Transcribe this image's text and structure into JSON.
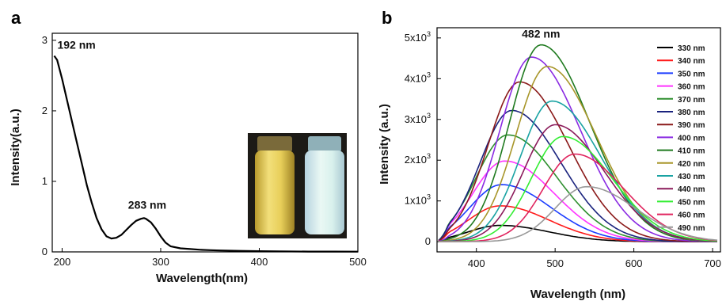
{
  "chart_data": [
    {
      "panel_label": "a",
      "type": "line",
      "xlabel": "Wavelength(nm)",
      "ylabel": "Intensity(a.u.)",
      "xlim": [
        190,
        500
      ],
      "ylim": [
        0,
        3.1
      ],
      "xticks": [
        "200",
        "300",
        "400",
        "500"
      ],
      "yticks": [
        "0",
        "1",
        "2",
        "3"
      ],
      "annotations": [
        {
          "text": "192 nm",
          "x": 192,
          "y": 2.78
        },
        {
          "text": "283 nm",
          "x": 283,
          "y": 0.48
        }
      ],
      "inset": "photo of two vials (yellow solution; blue-white fluorescence)",
      "series": [
        {
          "color": "#000000",
          "x": [
            192,
            195,
            200,
            205,
            210,
            215,
            220,
            225,
            230,
            235,
            240,
            245,
            250,
            255,
            260,
            265,
            270,
            275,
            280,
            283,
            285,
            290,
            295,
            300,
            305,
            310,
            320,
            330,
            340,
            350,
            360,
            380,
            400,
            420,
            450,
            475,
            500
          ],
          "y": [
            2.78,
            2.72,
            2.45,
            2.15,
            1.85,
            1.55,
            1.25,
            0.95,
            0.7,
            0.48,
            0.32,
            0.22,
            0.19,
            0.2,
            0.24,
            0.31,
            0.38,
            0.44,
            0.47,
            0.48,
            0.47,
            0.42,
            0.33,
            0.22,
            0.13,
            0.08,
            0.05,
            0.04,
            0.03,
            0.025,
            0.02,
            0.015,
            0.01,
            0.008,
            0.005,
            0.004,
            0.003
          ]
        }
      ]
    },
    {
      "panel_label": "b",
      "type": "line",
      "xlabel": "Wavelength (nm)",
      "ylabel": "Intensity (a.u.)",
      "xlim": [
        350,
        710
      ],
      "ylim": [
        0,
        5000
      ],
      "xticks": [
        "400",
        "500",
        "600",
        "700"
      ],
      "yticks": [
        "0",
        "1x10",
        "2x10",
        "3x10",
        "4x10",
        "5x10"
      ],
      "ytick_exponent": "3",
      "annotations": [
        {
          "text": "482 nm",
          "x": 482,
          "y": 4850
        }
      ],
      "legend_position": "right",
      "series": [
        {
          "name": "330 nm",
          "color": "#000000",
          "peak": 430,
          "amp": 400
        },
        {
          "name": "340 nm",
          "color": "#ff1a1a",
          "peak": 430,
          "amp": 880
        },
        {
          "name": "350 nm",
          "color": "#1a3cff",
          "peak": 432,
          "amp": 1400
        },
        {
          "name": "360 nm",
          "color": "#ff33ff",
          "peak": 436,
          "amp": 1980
        },
        {
          "name": "370 nm",
          "color": "#2f8f2f",
          "peak": 440,
          "amp": 2620
        },
        {
          "name": "380 nm",
          "color": "#1a237e",
          "peak": 445,
          "amp": 3220
        },
        {
          "name": "390 nm",
          "color": "#8b1a1a",
          "peak": 455,
          "amp": 3920
        },
        {
          "name": "400 nm",
          "color": "#8a2be2",
          "peak": 470,
          "amp": 4530
        },
        {
          "name": "410 nm",
          "color": "#1f7a1f",
          "peak": 482,
          "amp": 4830
        },
        {
          "name": "420 nm",
          "color": "#a8962a",
          "peak": 490,
          "amp": 4300
        },
        {
          "name": "430 nm",
          "color": "#1aa3a3",
          "peak": 496,
          "amp": 3450
        },
        {
          "name": "440 nm",
          "color": "#8b1a5a",
          "peak": 500,
          "amp": 2870
        },
        {
          "name": "450 nm",
          "color": "#33ee33",
          "peak": 510,
          "amp": 2580
        },
        {
          "name": "460 nm",
          "color": "#e0245e",
          "peak": 525,
          "amp": 2150
        },
        {
          "name": "490 nm",
          "color": "#999999",
          "peak": 540,
          "amp": 1350
        }
      ]
    }
  ]
}
